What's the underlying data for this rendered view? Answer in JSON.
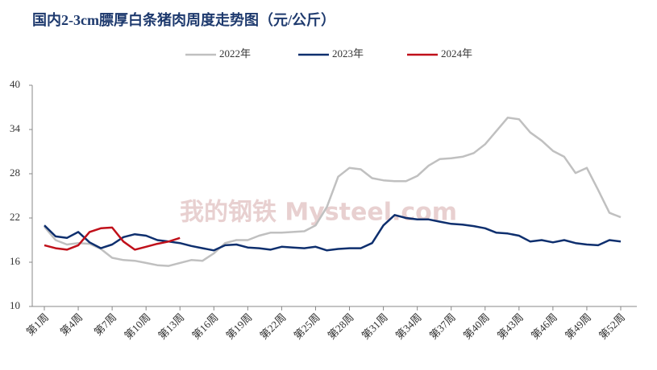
{
  "chart_data": {
    "type": "line",
    "title": "国内2-3cm膘厚白条猪肉周度走势图（元/公斤）",
    "watermark": "我的钢铁 Mysteel.com",
    "categories": [
      "第1周",
      null,
      null,
      "第4周",
      null,
      null,
      "第7周",
      null,
      null,
      "第10周",
      null,
      null,
      "第13周",
      null,
      null,
      "第16周",
      null,
      null,
      "第19周",
      null,
      null,
      "第22周",
      null,
      null,
      "第25周",
      null,
      null,
      "第28周",
      null,
      null,
      "第31周",
      null,
      null,
      "第34周",
      null,
      null,
      "第37周",
      null,
      null,
      "第40周",
      null,
      null,
      "第43周",
      null,
      null,
      "第46周",
      null,
      null,
      "第49周",
      null,
      null,
      "第52周"
    ],
    "series": [
      {
        "name": "2022年",
        "color": "#c0c0c0",
        "values": [
          20.8,
          19.0,
          18.4,
          18.6,
          18.5,
          17.8,
          16.6,
          16.3,
          16.2,
          15.9,
          15.6,
          15.5,
          15.9,
          16.3,
          16.2,
          17.2,
          18.6,
          19.0,
          19.0,
          19.6,
          20.0,
          20.0,
          20.1,
          20.2,
          21.0,
          23.5,
          27.6,
          28.8,
          28.6,
          27.4,
          27.1,
          27.0,
          27.0,
          27.7,
          29.1,
          30.0,
          30.1,
          30.3,
          30.8,
          32.0,
          33.8,
          35.6,
          35.4,
          33.6,
          32.5,
          31.1,
          30.3,
          28.1,
          28.8,
          25.8,
          22.7,
          22.1
        ]
      },
      {
        "name": "2023年",
        "color": "#0e2f6e",
        "values": [
          21.0,
          19.5,
          19.3,
          20.1,
          18.7,
          17.9,
          18.4,
          19.4,
          19.8,
          19.6,
          19.0,
          18.8,
          18.6,
          18.2,
          17.9,
          17.6,
          18.3,
          18.4,
          18.0,
          17.9,
          17.7,
          18.1,
          18.0,
          17.9,
          18.1,
          17.6,
          17.8,
          17.9,
          17.9,
          18.6,
          21.0,
          22.4,
          22.0,
          21.8,
          21.8,
          21.5,
          21.2,
          21.1,
          20.9,
          20.6,
          20.0,
          19.9,
          19.6,
          18.8,
          19.0,
          18.7,
          19.0,
          18.6,
          18.4,
          18.3,
          19.0,
          18.8
        ]
      },
      {
        "name": "2024年",
        "color": "#c0101a",
        "values": [
          18.3,
          17.9,
          17.7,
          18.3,
          20.1,
          20.6,
          20.7,
          18.8,
          17.7,
          18.1,
          18.5,
          18.8,
          19.3,
          null,
          null,
          null,
          null,
          null,
          null,
          null,
          null,
          null,
          null,
          null,
          null,
          null,
          null,
          null,
          null,
          null,
          null,
          null,
          null,
          null,
          null,
          null,
          null,
          null,
          null,
          null,
          null,
          null,
          null,
          null,
          null,
          null,
          null,
          null,
          null,
          null,
          null,
          null
        ]
      }
    ],
    "ylim": [
      10,
      40
    ],
    "yticks": [
      10,
      16,
      22,
      28,
      34,
      40
    ],
    "legend": "top"
  }
}
